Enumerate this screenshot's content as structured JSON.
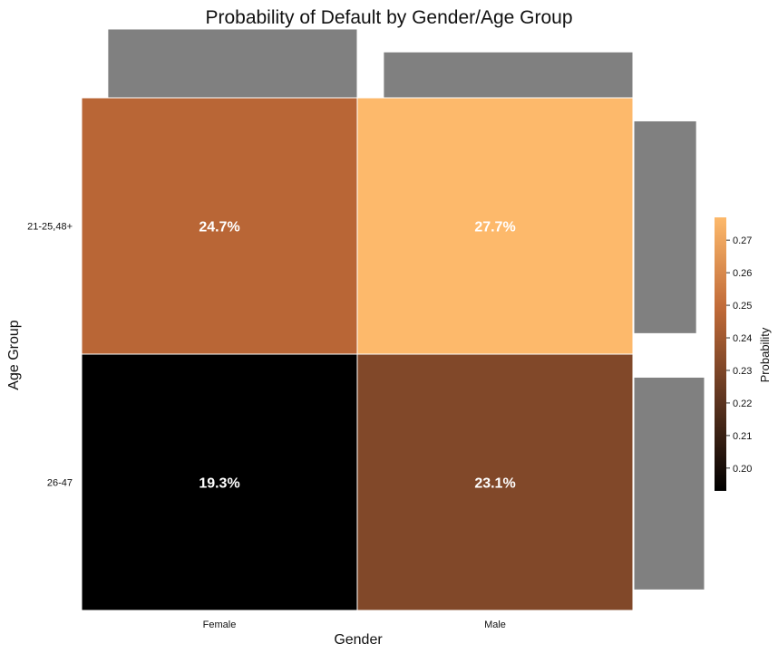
{
  "chart_data": {
    "type": "heatmap",
    "title": "Probability of Default by Gender/Age Group",
    "xlabel": "Gender",
    "ylabel": "Age Group",
    "x_categories": [
      "Female",
      "Male"
    ],
    "y_categories": [
      "21-25,48+",
      "26-47"
    ],
    "cells": [
      {
        "x": "Female",
        "y": "21-25,48+",
        "value": 0.247,
        "label": "24.7%"
      },
      {
        "x": "Male",
        "y": "21-25,48+",
        "value": 0.277,
        "label": "27.7%"
      },
      {
        "x": "Female",
        "y": "26-47",
        "value": 0.193,
        "label": "19.3%"
      },
      {
        "x": "Male",
        "y": "26-47",
        "value": 0.231,
        "label": "23.1%"
      }
    ],
    "marginal_x": [
      {
        "category": "Female",
        "value": 0.6
      },
      {
        "category": "Male",
        "value": 0.4
      }
    ],
    "marginal_y": [
      {
        "category": "21-25,48+",
        "value": 0.47
      },
      {
        "category": "26-47",
        "value": 0.53
      }
    ],
    "colorbar": {
      "title": "Probability",
      "range": [
        0.193,
        0.277
      ],
      "ticks": [
        0.2,
        0.21,
        0.22,
        0.23,
        0.24,
        0.25,
        0.26,
        0.27
      ],
      "tick_labels": [
        "0.20",
        "0.21",
        "0.22",
        "0.23",
        "0.24",
        "0.25",
        "0.26",
        "0.27"
      ],
      "colors": [
        "#000000",
        "#5e3520",
        "#c06a38",
        "#fdb96b"
      ]
    },
    "marginal_bar_color": "#808080"
  }
}
